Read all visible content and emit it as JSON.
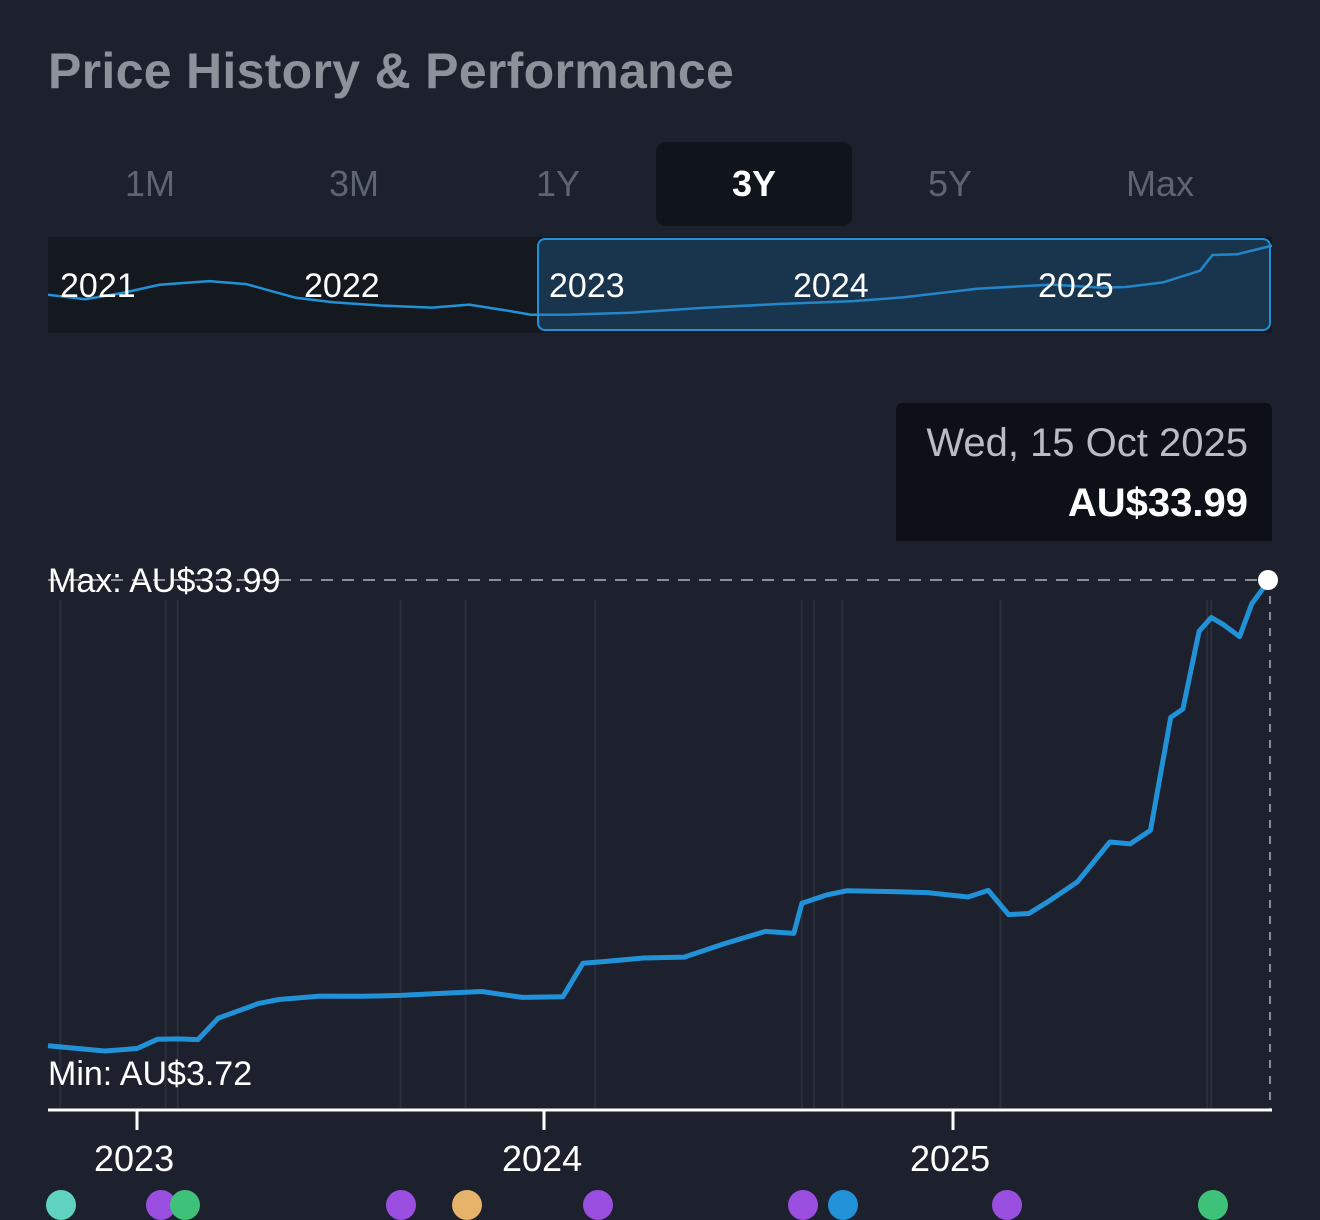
{
  "title": "Price History & Performance",
  "tabs": [
    {
      "label": "1M",
      "active": false
    },
    {
      "label": "3M",
      "active": false
    },
    {
      "label": "1Y",
      "active": false
    },
    {
      "label": "3Y",
      "active": true
    },
    {
      "label": "5Y",
      "active": false
    },
    {
      "label": "Max",
      "active": false
    }
  ],
  "navigator": {
    "years": [
      "2021",
      "2022",
      "2023",
      "2024",
      "2025"
    ]
  },
  "tooltip": {
    "date": "Wed, 15 Oct 2025",
    "price": "AU$33.99"
  },
  "colors": {
    "line": "#2192d8",
    "background": "#1c212d"
  },
  "chart_data": {
    "type": "line",
    "title": "Price History & Performance",
    "currency": "AU$",
    "max_label": "Max: AU$33.99",
    "min_label": "Min: AU$3.72",
    "x_ticks": [
      "2023",
      "2024",
      "2025"
    ],
    "x": [
      2022.78,
      2022.85,
      2022.92,
      2023.0,
      2023.05,
      2023.1,
      2023.15,
      2023.2,
      2023.25,
      2023.3,
      2023.35,
      2023.45,
      2023.55,
      2023.65,
      2023.75,
      2023.85,
      2023.95,
      2024.05,
      2024.1,
      2024.15,
      2024.25,
      2024.35,
      2024.45,
      2024.55,
      2024.62,
      2024.64,
      2024.7,
      2024.75,
      2024.85,
      2024.95,
      2025.05,
      2025.1,
      2025.15,
      2025.2,
      2025.25,
      2025.32,
      2025.4,
      2025.45,
      2025.5,
      2025.55,
      2025.58,
      2025.62,
      2025.65,
      2025.68,
      2025.72,
      2025.75,
      2025.79
    ],
    "values": [
      4.0,
      3.9,
      3.8,
      4.0,
      4.6,
      4.6,
      4.5,
      5.8,
      6.2,
      6.6,
      6.8,
      7.0,
      7.0,
      7.1,
      7.3,
      7.5,
      7.2,
      7.3,
      9.5,
      9.6,
      9.8,
      9.8,
      10.6,
      11.3,
      11.1,
      13.0,
      13.5,
      13.8,
      13.8,
      13.8,
      13.6,
      14.1,
      12.6,
      12.7,
      13.5,
      14.7,
      17.2,
      17.0,
      17.8,
      25.0,
      25.5,
      30.5,
      31.4,
      31.0,
      30.3,
      32.5,
      33.99
    ],
    "ylim": [
      3.72,
      33.99
    ],
    "max": 33.99,
    "min": 3.72,
    "navigator_x": [
      2020.85,
      2021.0,
      2021.15,
      2021.3,
      2021.5,
      2021.65,
      2021.85,
      2022.0,
      2022.2,
      2022.4,
      2022.55,
      2022.7,
      2022.8,
      2022.95,
      2023.2,
      2023.5,
      2023.8,
      2024.1,
      2024.3,
      2024.6,
      2024.9,
      2025.1,
      2025.2,
      2025.35,
      2025.5,
      2025.55,
      2025.65,
      2025.79
    ],
    "navigator_values": [
      9.6,
      9.2,
      10.0,
      10.9,
      11.2,
      10.8,
      9.2,
      8.8,
      8.4,
      8.0,
      8.2,
      7.4,
      7.0,
      7.2,
      7.5,
      8.0,
      8.3,
      8.6,
      9.2,
      10.5,
      11.1,
      10.6,
      10.5,
      11.0,
      12.6,
      14.8,
      15.0,
      16.0
    ]
  }
}
